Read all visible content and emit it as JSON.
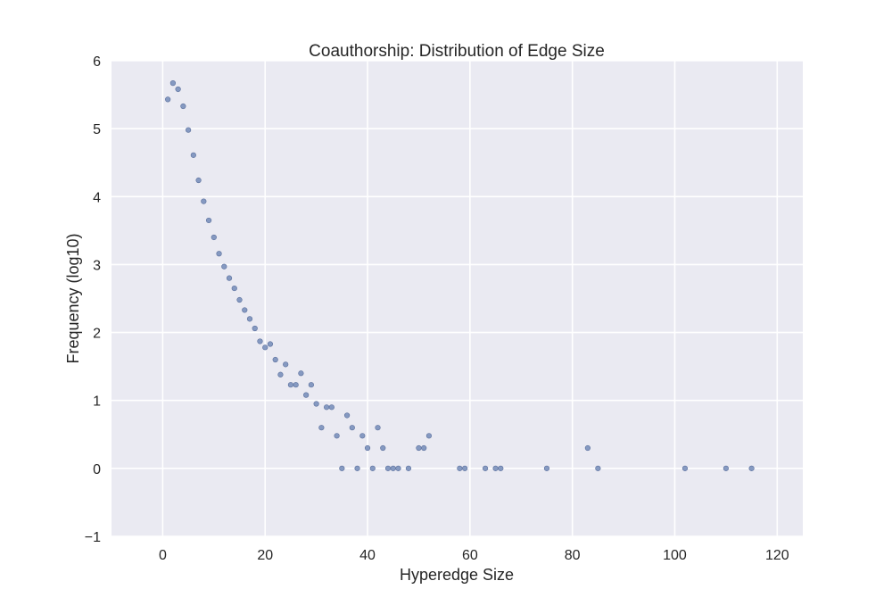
{
  "chart_data": {
    "type": "scatter",
    "title": "Coauthorship: Distribution of Edge Size",
    "xlabel": "Hyperedge Size",
    "ylabel": "Frequency (log10)",
    "xlim": [
      -10,
      125
    ],
    "ylim": [
      -1,
      6
    ],
    "xticks": [
      0,
      20,
      40,
      60,
      80,
      100,
      120
    ],
    "yticks": [
      -1,
      0,
      1,
      2,
      3,
      4,
      5,
      6
    ],
    "ytick_labels": [
      "−1",
      "0",
      "1",
      "2",
      "3",
      "4",
      "5",
      "6"
    ],
    "grid": true,
    "colors": {
      "background": "#eaeaf2",
      "grid": "#ffffff",
      "marker": "#7a90bb",
      "marker_edge": "#5a6f9c"
    },
    "points": [
      {
        "x": 1,
        "y": 5.43
      },
      {
        "x": 2,
        "y": 5.67
      },
      {
        "x": 3,
        "y": 5.58
      },
      {
        "x": 4,
        "y": 5.33
      },
      {
        "x": 5,
        "y": 4.98
      },
      {
        "x": 6,
        "y": 4.61
      },
      {
        "x": 7,
        "y": 4.24
      },
      {
        "x": 8,
        "y": 3.93
      },
      {
        "x": 9,
        "y": 3.65
      },
      {
        "x": 10,
        "y": 3.4
      },
      {
        "x": 11,
        "y": 3.16
      },
      {
        "x": 12,
        "y": 2.97
      },
      {
        "x": 13,
        "y": 2.8
      },
      {
        "x": 14,
        "y": 2.65
      },
      {
        "x": 15,
        "y": 2.48
      },
      {
        "x": 16,
        "y": 2.33
      },
      {
        "x": 17,
        "y": 2.2
      },
      {
        "x": 18,
        "y": 2.06
      },
      {
        "x": 19,
        "y": 1.87
      },
      {
        "x": 20,
        "y": 1.78
      },
      {
        "x": 21,
        "y": 1.83
      },
      {
        "x": 22,
        "y": 1.6
      },
      {
        "x": 23,
        "y": 1.38
      },
      {
        "x": 24,
        "y": 1.53
      },
      {
        "x": 25,
        "y": 1.23
      },
      {
        "x": 26,
        "y": 1.23
      },
      {
        "x": 27,
        "y": 1.4
      },
      {
        "x": 28,
        "y": 1.08
      },
      {
        "x": 29,
        "y": 1.23
      },
      {
        "x": 30,
        "y": 0.95
      },
      {
        "x": 31,
        "y": 0.6
      },
      {
        "x": 32,
        "y": 0.9
      },
      {
        "x": 33,
        "y": 0.9
      },
      {
        "x": 34,
        "y": 0.48
      },
      {
        "x": 35,
        "y": 0.0
      },
      {
        "x": 36,
        "y": 0.78
      },
      {
        "x": 37,
        "y": 0.6
      },
      {
        "x": 38,
        "y": 0.0
      },
      {
        "x": 39,
        "y": 0.48
      },
      {
        "x": 40,
        "y": 0.3
      },
      {
        "x": 41,
        "y": 0.0
      },
      {
        "x": 42,
        "y": 0.6
      },
      {
        "x": 43,
        "y": 0.3
      },
      {
        "x": 44,
        "y": 0.0
      },
      {
        "x": 45,
        "y": 0.0
      },
      {
        "x": 46,
        "y": 0.0
      },
      {
        "x": 48,
        "y": 0.0
      },
      {
        "x": 50,
        "y": 0.3
      },
      {
        "x": 51,
        "y": 0.3
      },
      {
        "x": 52,
        "y": 0.48
      },
      {
        "x": 58,
        "y": 0.0
      },
      {
        "x": 59,
        "y": 0.0
      },
      {
        "x": 63,
        "y": 0.0
      },
      {
        "x": 65,
        "y": 0.0
      },
      {
        "x": 66,
        "y": 0.0
      },
      {
        "x": 75,
        "y": 0.0
      },
      {
        "x": 83,
        "y": 0.3
      },
      {
        "x": 85,
        "y": 0.0
      },
      {
        "x": 102,
        "y": 0.0
      },
      {
        "x": 110,
        "y": 0.0
      },
      {
        "x": 115,
        "y": 0.0
      }
    ]
  }
}
